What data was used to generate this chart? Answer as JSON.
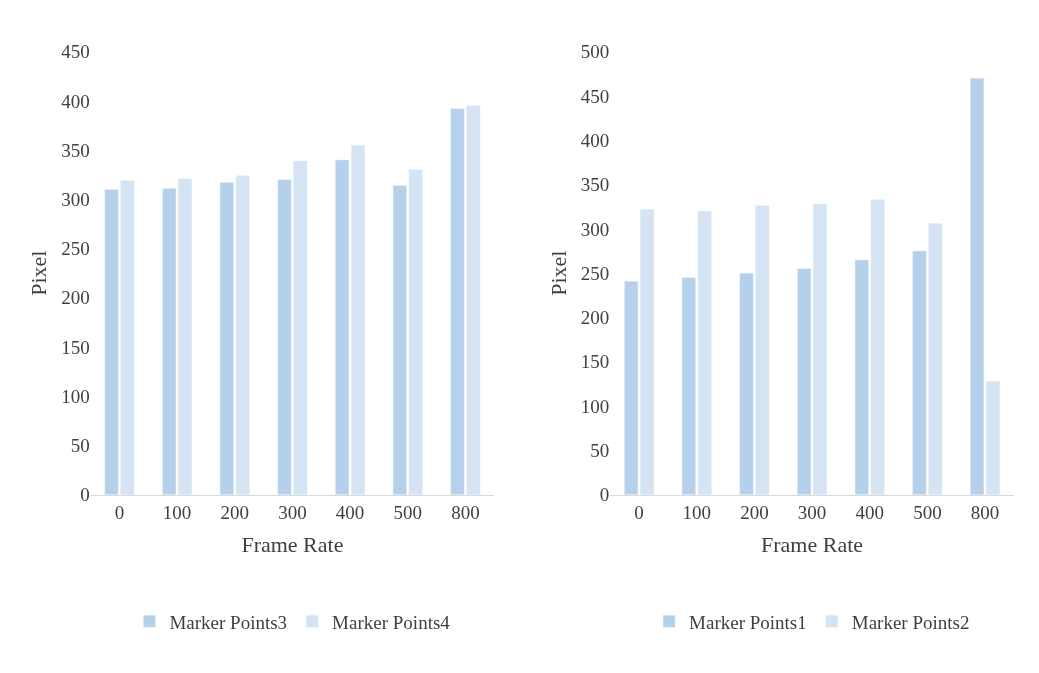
{
  "chart_data": [
    {
      "type": "bar",
      "xlabel": "Frame Rate",
      "ylabel": "Pixel",
      "categories": [
        "0",
        "100",
        "200",
        "300",
        "400",
        "500",
        "800"
      ],
      "series": [
        {
          "name": "Marker Points3",
          "color": "#b4d0eb",
          "values": [
            310,
            311,
            317,
            320,
            340,
            314,
            392
          ]
        },
        {
          "name": "Marker Points4",
          "color": "#d5e4f3",
          "values": [
            319,
            321,
            324,
            339,
            355,
            330,
            395
          ]
        }
      ],
      "ylim": [
        0,
        450
      ],
      "yticks": [
        0,
        50,
        100,
        150,
        200,
        250,
        300,
        350,
        400,
        450
      ],
      "grid": false,
      "legend": "bottom"
    },
    {
      "type": "bar",
      "xlabel": "Frame Rate",
      "ylabel": "Pixel",
      "categories": [
        "0",
        "100",
        "200",
        "300",
        "400",
        "500",
        "800"
      ],
      "series": [
        {
          "name": "Marker Points1",
          "color": "#b4d0eb",
          "values": [
            241,
            245,
            250,
            255,
            265,
            275,
            470
          ]
        },
        {
          "name": "Marker Points2",
          "color": "#d5e4f3",
          "values": [
            322,
            320,
            326,
            328,
            333,
            306,
            128
          ]
        }
      ],
      "ylim": [
        0,
        500
      ],
      "yticks": [
        0,
        50,
        100,
        150,
        200,
        250,
        300,
        350,
        400,
        450,
        500
      ],
      "grid": false,
      "legend": "bottom"
    }
  ]
}
